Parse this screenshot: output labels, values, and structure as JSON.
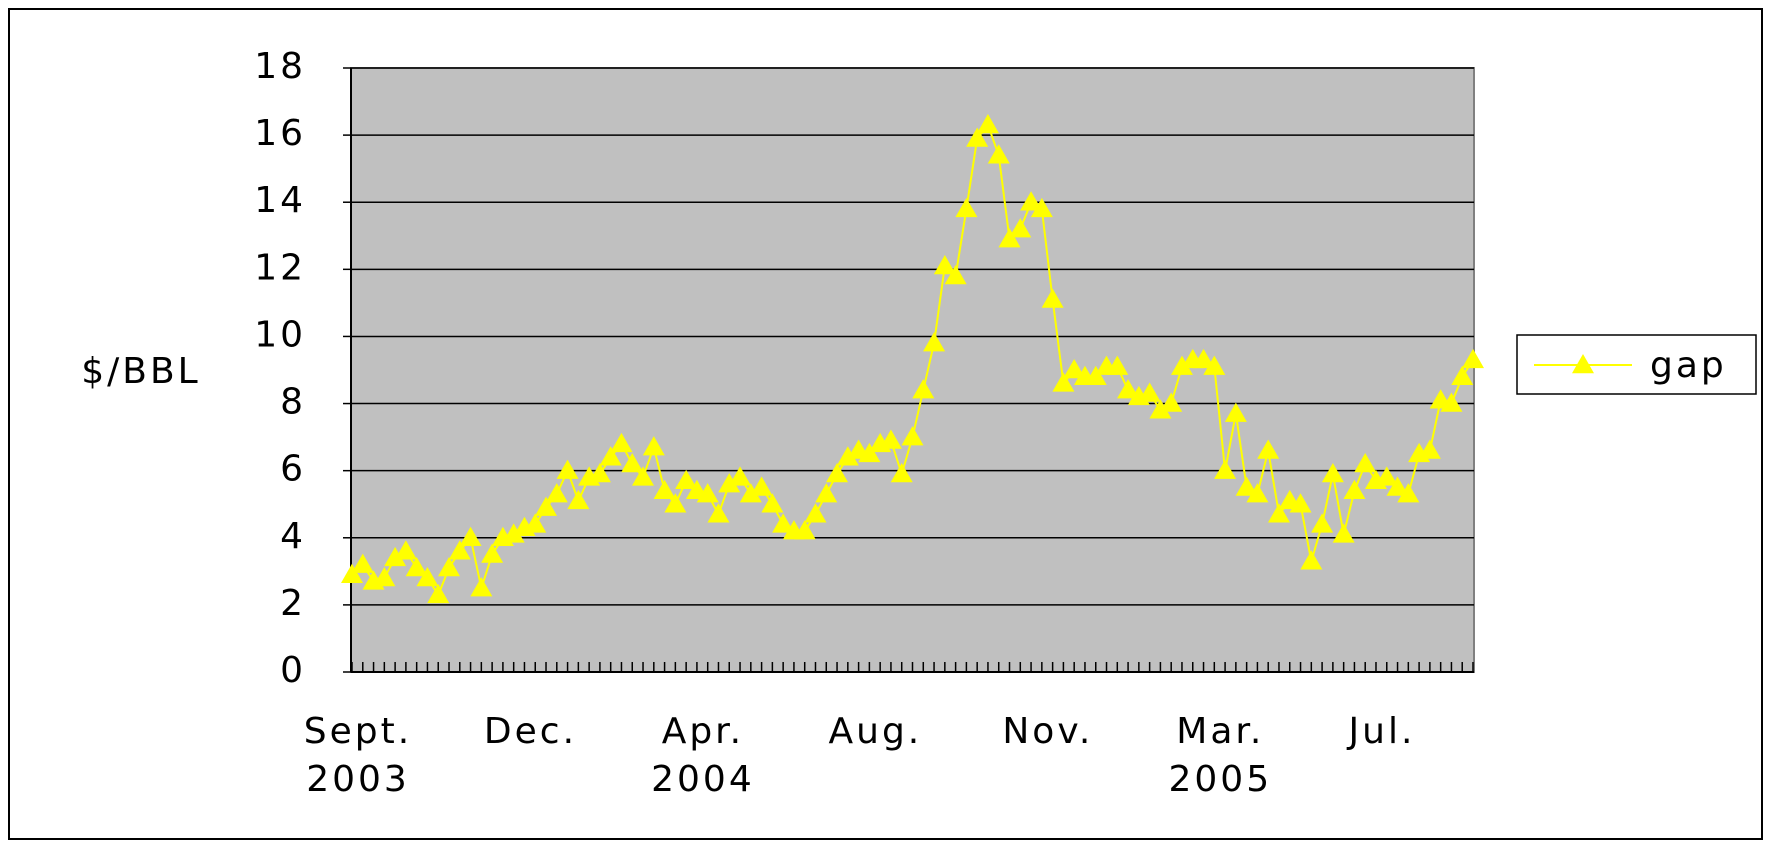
{
  "chart_data": {
    "type": "line",
    "y_label": "$/BBL",
    "categories": [
      "Sept.",
      null,
      null,
      null,
      null,
      null,
      null,
      null,
      null,
      null,
      null,
      null,
      null,
      null,
      null,
      null,
      "Dec.",
      null,
      null,
      null,
      null,
      null,
      null,
      null,
      null,
      null,
      null,
      null,
      null,
      null,
      null,
      null,
      "Apr.",
      null,
      null,
      null,
      null,
      null,
      null,
      null,
      null,
      null,
      null,
      null,
      null,
      null,
      null,
      null,
      "Aug.",
      null,
      null,
      null,
      null,
      null,
      null,
      null,
      null,
      null,
      null,
      null,
      null,
      null,
      null,
      null,
      "Nov.",
      null,
      null,
      null,
      null,
      null,
      null,
      null,
      null,
      null,
      null,
      null,
      null,
      null,
      null,
      null,
      "Mar.",
      null,
      null,
      null,
      null,
      null,
      null,
      null,
      null,
      null,
      null,
      null,
      null,
      null,
      null,
      "Jul.",
      null,
      null,
      null,
      null,
      null,
      null,
      null,
      null,
      null
    ],
    "year_categories": [
      "2003",
      null,
      null,
      null,
      null,
      null,
      null,
      null,
      null,
      null,
      null,
      null,
      null,
      null,
      null,
      null,
      null,
      null,
      null,
      null,
      null,
      null,
      null,
      null,
      null,
      null,
      null,
      null,
      null,
      null,
      null,
      null,
      "2004",
      null,
      null,
      null,
      null,
      null,
      null,
      null,
      null,
      null,
      null,
      null,
      null,
      null,
      null,
      null,
      null,
      null,
      null,
      null,
      null,
      null,
      null,
      null,
      null,
      null,
      null,
      null,
      null,
      null,
      null,
      null,
      null,
      null,
      null,
      null,
      null,
      null,
      null,
      null,
      null,
      null,
      null,
      null,
      null,
      null,
      null,
      null,
      "2005",
      null,
      null,
      null,
      null,
      null,
      null,
      null,
      null,
      null,
      null,
      null,
      null,
      null,
      null,
      null,
      null,
      null,
      null,
      null,
      null,
      null,
      null,
      null,
      null
    ],
    "series": [
      {
        "name": "gap",
        "color": "#ffff00",
        "values": [
          2.9,
          3.2,
          2.7,
          2.8,
          3.4,
          3.6,
          3.1,
          2.8,
          2.3,
          3.1,
          3.6,
          4.0,
          2.5,
          3.5,
          4.0,
          4.1,
          4.3,
          4.4,
          4.9,
          5.3,
          6.0,
          5.1,
          5.8,
          5.9,
          6.4,
          6.8,
          6.2,
          5.8,
          6.7,
          5.4,
          5.0,
          5.7,
          5.4,
          5.3,
          4.7,
          5.6,
          5.8,
          5.3,
          5.5,
          5.0,
          4.4,
          4.2,
          4.2,
          4.7,
          5.3,
          5.9,
          6.4,
          6.6,
          6.5,
          6.8,
          6.9,
          5.9,
          7.0,
          8.4,
          9.8,
          12.1,
          11.8,
          13.8,
          15.9,
          16.3,
          15.4,
          12.9,
          13.2,
          14.0,
          13.8,
          11.1,
          8.6,
          9.0,
          8.8,
          8.8,
          9.1,
          9.1,
          8.4,
          8.2,
          8.3,
          7.8,
          8.0,
          9.1,
          9.3,
          9.3,
          9.1,
          6.0,
          7.7,
          5.5,
          5.3,
          6.6,
          4.7,
          5.1,
          5.0,
          3.3,
          4.4,
          5.9,
          4.1,
          5.4,
          6.2,
          5.7,
          5.8,
          5.5,
          5.3,
          6.5,
          6.6,
          8.1,
          8.0,
          8.8,
          9.3
        ]
      }
    ],
    "ylim": [
      0,
      18
    ],
    "yticks": [
      0,
      2,
      4,
      6,
      8,
      10,
      12,
      14,
      16,
      18
    ],
    "grid": true,
    "legend": "right"
  }
}
